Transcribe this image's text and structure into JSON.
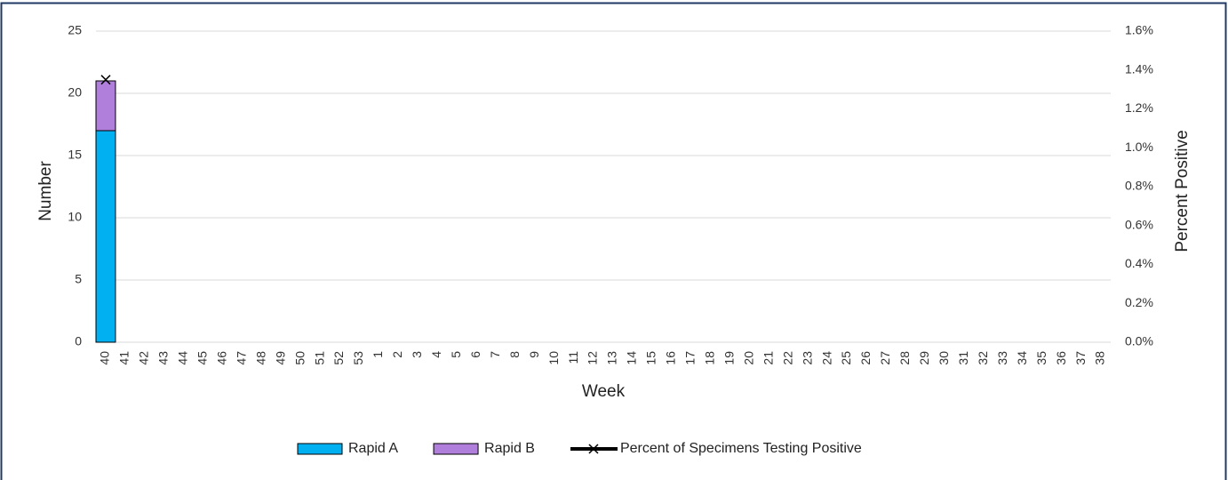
{
  "chart_data": {
    "type": "bar",
    "stacked": true,
    "x_label": "Week",
    "y_label": "Number",
    "y2_label": "Percent Positive",
    "categories": [
      "40",
      "41",
      "42",
      "43",
      "44",
      "45",
      "46",
      "47",
      "48",
      "49",
      "50",
      "51",
      "52",
      "53",
      "1",
      "2",
      "3",
      "4",
      "5",
      "6",
      "7",
      "8",
      "9",
      "10",
      "11",
      "12",
      "13",
      "14",
      "15",
      "16",
      "17",
      "18",
      "19",
      "20",
      "21",
      "22",
      "23",
      "24",
      "25",
      "26",
      "27",
      "28",
      "29",
      "30",
      "31",
      "32",
      "33",
      "34",
      "35",
      "36",
      "37",
      "38"
    ],
    "series": [
      {
        "name": "Rapid A",
        "type": "bar",
        "color": "#00b0f0",
        "values": [
          17,
          null,
          null,
          null,
          null,
          null,
          null,
          null,
          null,
          null,
          null,
          null,
          null,
          null,
          null,
          null,
          null,
          null,
          null,
          null,
          null,
          null,
          null,
          null,
          null,
          null,
          null,
          null,
          null,
          null,
          null,
          null,
          null,
          null,
          null,
          null,
          null,
          null,
          null,
          null,
          null,
          null,
          null,
          null,
          null,
          null,
          null,
          null,
          null,
          null,
          null,
          null
        ]
      },
      {
        "name": "Rapid B",
        "type": "bar",
        "color": "#b07fdc",
        "values": [
          4,
          null,
          null,
          null,
          null,
          null,
          null,
          null,
          null,
          null,
          null,
          null,
          null,
          null,
          null,
          null,
          null,
          null,
          null,
          null,
          null,
          null,
          null,
          null,
          null,
          null,
          null,
          null,
          null,
          null,
          null,
          null,
          null,
          null,
          null,
          null,
          null,
          null,
          null,
          null,
          null,
          null,
          null,
          null,
          null,
          null,
          null,
          null,
          null,
          null,
          null,
          null
        ]
      },
      {
        "name": "Percent of Specimens Testing Positive",
        "type": "line",
        "axis": "y2",
        "color": "#000000",
        "values": [
          1.35,
          null,
          null,
          null,
          null,
          null,
          null,
          null,
          null,
          null,
          null,
          null,
          null,
          null,
          null,
          null,
          null,
          null,
          null,
          null,
          null,
          null,
          null,
          null,
          null,
          null,
          null,
          null,
          null,
          null,
          null,
          null,
          null,
          null,
          null,
          null,
          null,
          null,
          null,
          null,
          null,
          null,
          null,
          null,
          null,
          null,
          null,
          null,
          null,
          null,
          null,
          null
        ]
      }
    ],
    "ylim": [
      0,
      25
    ],
    "yticks": [
      0,
      5,
      10,
      15,
      20,
      25
    ],
    "y2lim": [
      0,
      1.6
    ],
    "y2ticks": [
      {
        "value": 0,
        "label": "0.0%"
      },
      {
        "value": 0.2,
        "label": "0.2%"
      },
      {
        "value": 0.4,
        "label": "0.4%"
      },
      {
        "value": 0.6,
        "label": "0.6%"
      },
      {
        "value": 0.8,
        "label": "0.8%"
      },
      {
        "value": 1.0,
        "label": "1.0%"
      },
      {
        "value": 1.2,
        "label": "1.2%"
      },
      {
        "value": 1.4,
        "label": "1.4%"
      },
      {
        "value": 1.6,
        "label": "1.6%"
      }
    ],
    "grid": true,
    "legend": "bottom"
  }
}
